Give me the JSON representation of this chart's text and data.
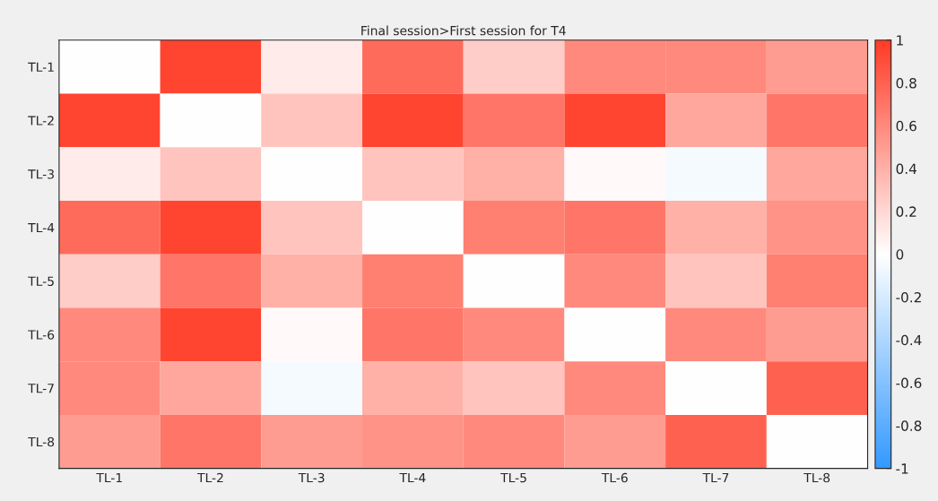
{
  "chart_data": {
    "type": "heatmap",
    "title": "Final session>First session for T4",
    "categories": [
      "TL-1",
      "TL-2",
      "TL-3",
      "TL-4",
      "TL-5",
      "TL-6",
      "TL-7",
      "TL-8"
    ],
    "y_categories": [
      "TL-1",
      "TL-2",
      "TL-3",
      "TL-4",
      "TL-5",
      "TL-6",
      "TL-7",
      "TL-8"
    ],
    "cells": [
      [
        0,
        0.95,
        0.1,
        0.75,
        0.25,
        0.6,
        0.6,
        0.5
      ],
      [
        0.95,
        0,
        0.3,
        0.95,
        0.7,
        0.95,
        0.45,
        0.7
      ],
      [
        0.1,
        0.3,
        0,
        0.3,
        0.4,
        0.03,
        -0.05,
        0.45
      ],
      [
        0.75,
        0.95,
        0.3,
        0,
        0.65,
        0.7,
        0.4,
        0.55
      ],
      [
        0.25,
        0.7,
        0.4,
        0.65,
        0,
        0.6,
        0.3,
        0.65
      ],
      [
        0.6,
        0.95,
        0.03,
        0.7,
        0.6,
        0,
        0.6,
        0.5
      ],
      [
        0.6,
        0.45,
        -0.05,
        0.4,
        0.3,
        0.6,
        0,
        0.8
      ],
      [
        0.5,
        0.7,
        0.5,
        0.55,
        0.6,
        0.5,
        0.8,
        0
      ]
    ],
    "clim": [
      -1,
      1
    ],
    "cticks": [
      {
        "value": -1,
        "label": "-1"
      },
      {
        "value": -0.8,
        "label": "-0.8"
      },
      {
        "value": -0.6,
        "label": "-0.6"
      },
      {
        "value": -0.4,
        "label": "-0.4"
      },
      {
        "value": -0.2,
        "label": "-0.2"
      },
      {
        "value": 0,
        "label": "0"
      },
      {
        "value": 0.2,
        "label": "0.2"
      },
      {
        "value": 0.4,
        "label": "0.4"
      },
      {
        "value": 0.6,
        "label": "0.6"
      },
      {
        "value": 0.8,
        "label": "0.8"
      },
      {
        "value": 1,
        "label": "1"
      }
    ]
  }
}
